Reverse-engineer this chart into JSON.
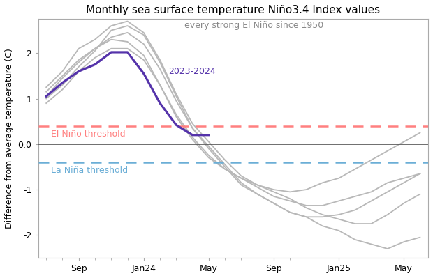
{
  "title": "Monthly sea surface temperature Niño3.4 Index values",
  "ylabel": "Difference from average temperature (C)",
  "el_nino_threshold": 0.4,
  "la_nina_threshold": -0.4,
  "el_nino_label": "El Niño threshold",
  "la_nina_label": "La Niña threshold",
  "annotation_gray": "every strong El Niño since 1950",
  "annotation_purple": "2023-2024",
  "xtick_labels": [
    "Sep",
    "Jan24",
    "May",
    "Sep",
    "Jan25",
    "May"
  ],
  "xtick_positions": [
    2,
    6,
    10,
    14,
    18,
    22
  ],
  "ylim": [
    -2.5,
    2.75
  ],
  "ytick_values": [
    -2.0,
    -1.0,
    0.0,
    1.0,
    2.0
  ],
  "purple_line": [
    1.05,
    1.35,
    1.6,
    1.75,
    2.02,
    2.02,
    1.55,
    0.9,
    0.42,
    0.2,
    0.2
  ],
  "gray_lines": [
    [
      1.25,
      1.6,
      2.1,
      2.3,
      2.6,
      2.7,
      2.45,
      1.85,
      1.1,
      0.45,
      0.05,
      -0.35,
      -0.7,
      -0.9,
      -1.05,
      -1.2,
      -1.4,
      -1.55,
      -1.65,
      -1.75,
      -1.75,
      -1.55,
      -1.3,
      -1.1
    ],
    [
      1.05,
      1.45,
      1.8,
      2.1,
      2.35,
      2.45,
      2.2,
      1.65,
      0.95,
      0.35,
      -0.05,
      -0.45,
      -0.85,
      -1.1,
      -1.3,
      -1.5,
      -1.6,
      -1.8,
      -1.9,
      -2.1,
      -2.2,
      -2.3,
      -2.15,
      -2.05
    ],
    [
      1.0,
      1.3,
      1.7,
      2.05,
      2.5,
      2.6,
      2.4,
      1.8,
      1.05,
      0.35,
      -0.1,
      -0.5,
      -0.9,
      -1.1,
      -1.3,
      -1.5,
      -1.6,
      -1.6,
      -1.55,
      -1.45,
      -1.25,
      -1.05,
      -0.85,
      -0.65
    ],
    [
      1.15,
      1.5,
      1.85,
      2.1,
      2.3,
      2.25,
      1.95,
      1.3,
      0.6,
      0.1,
      -0.3,
      -0.55,
      -0.75,
      -0.9,
      -1.0,
      -1.05,
      -1.0,
      -0.85,
      -0.75,
      -0.55,
      -0.35,
      -0.15,
      0.05,
      0.25
    ],
    [
      0.9,
      1.2,
      1.6,
      1.9,
      2.1,
      2.1,
      1.85,
      1.3,
      0.65,
      0.15,
      -0.25,
      -0.55,
      -0.75,
      -0.95,
      -1.15,
      -1.25,
      -1.35,
      -1.35,
      -1.25,
      -1.15,
      -1.05,
      -0.85,
      -0.75,
      -0.65
    ]
  ],
  "purple_color": "#5533AA",
  "gray_color": "#b8b8b8",
  "el_nino_color": "#ff8080",
  "la_nina_color": "#6baed6",
  "zero_line_color": "#555555",
  "background_color": "#ffffff"
}
